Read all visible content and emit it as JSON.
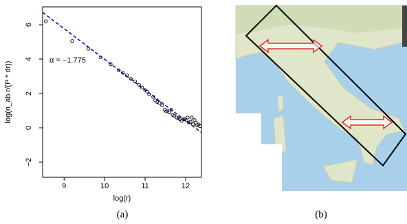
{
  "chart_data": {
    "type": "scatter",
    "x_label": "log(r)",
    "y_label": "log(n_ab.r/(P * dr))",
    "annotation": "α = −1.775",
    "x": [
      8.55,
      9.2,
      9.6,
      9.9,
      10.15,
      10.35,
      10.45,
      10.55,
      10.65,
      10.75,
      10.85,
      10.92,
      11.0,
      11.05,
      11.1,
      11.2,
      11.25,
      11.3,
      11.35,
      11.42,
      11.48,
      11.52,
      11.55,
      11.6,
      11.65,
      11.68,
      11.72,
      11.78,
      11.82,
      11.86,
      11.9,
      11.95,
      11.98,
      12.02,
      12.05,
      12.08,
      12.12,
      12.15,
      12.18,
      12.22,
      12.25,
      12.28,
      12.32,
      12.35
    ],
    "values": [
      6.2,
      5.05,
      4.6,
      4.1,
      3.7,
      3.35,
      3.2,
      3.05,
      2.85,
      2.7,
      2.5,
      2.35,
      2.2,
      2.1,
      1.95,
      1.8,
      1.6,
      1.5,
      1.45,
      1.3,
      1.05,
      0.95,
      1.0,
      0.9,
      1.05,
      0.75,
      0.7,
      0.6,
      0.55,
      0.5,
      0.4,
      0.5,
      0.5,
      0.45,
      0.6,
      0.3,
      0.35,
      0.6,
      0.2,
      0.45,
      0.3,
      0.15,
      0.2,
      0.1
    ],
    "color": "#000000",
    "fit": {
      "x": [
        8.47,
        12.39
      ],
      "values": [
        6.72,
        -0.28
      ],
      "color": "#0000cc"
    },
    "xlim": [
      8.47,
      12.39
    ],
    "ylim": [
      -2.88,
      7.04
    ],
    "xticks": [
      9,
      10,
      11,
      12
    ],
    "yticks": [
      {
        "value": -2,
        "label": "−2"
      },
      0,
      2,
      4,
      6
    ]
  },
  "captions": [
    "(a)",
    "(b)"
  ]
}
